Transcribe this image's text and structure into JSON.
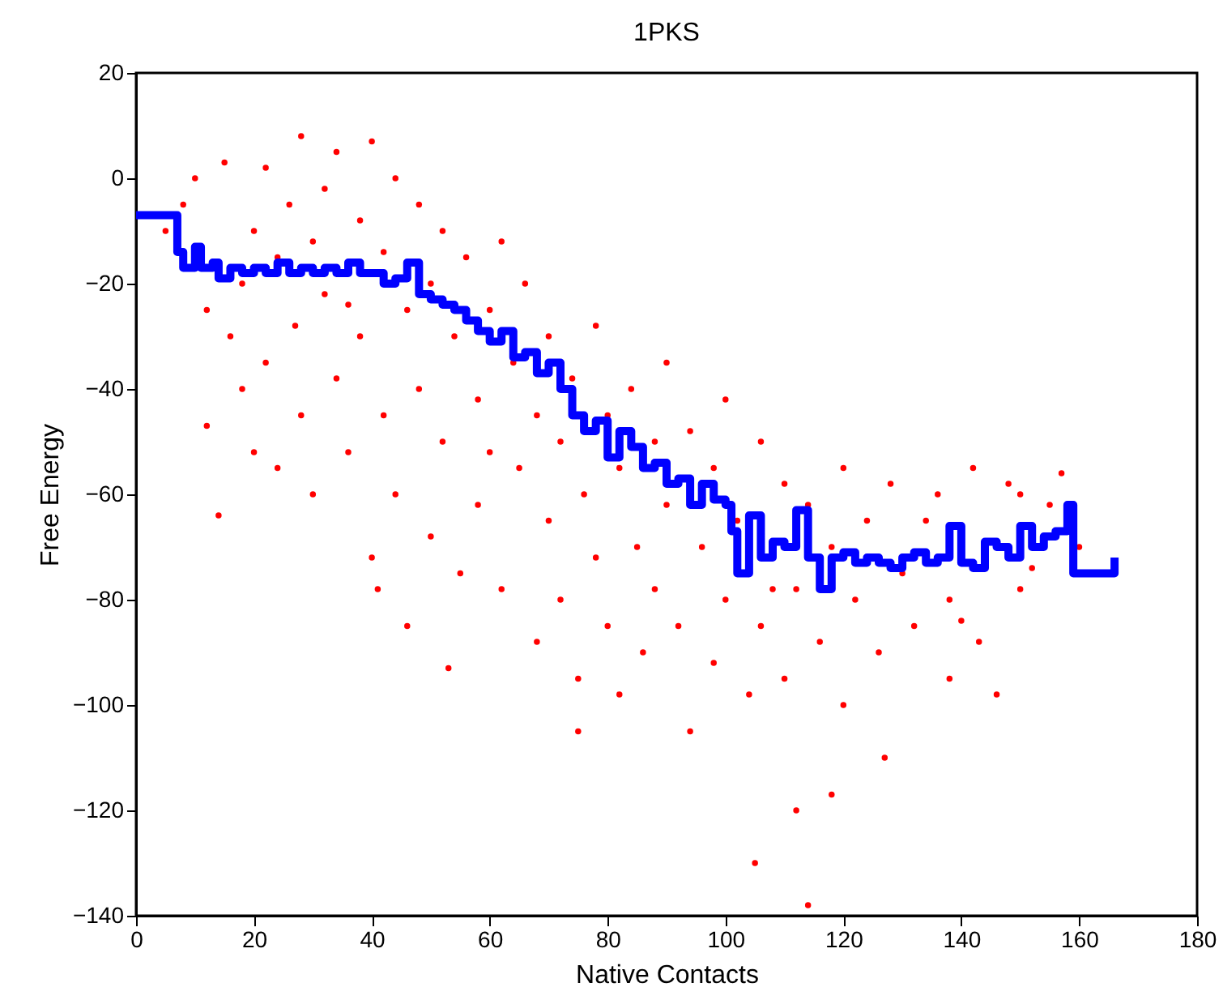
{
  "chart_data": {
    "type": "scatter",
    "title": "1PKS",
    "xlabel": "Native Contacts",
    "ylabel": "Free Energy",
    "xlim": [
      0,
      180
    ],
    "ylim": [
      -140,
      20
    ],
    "xticks": [
      0,
      20,
      40,
      60,
      80,
      100,
      120,
      140,
      160,
      180
    ],
    "yticks": [
      -140,
      -120,
      -100,
      -80,
      -60,
      -40,
      -20,
      0,
      20
    ],
    "grid": false,
    "series": [
      {
        "marker": "circle",
        "color": "#ff0000",
        "x": [
          5,
          8,
          10,
          12,
          12,
          14,
          15,
          16,
          18,
          18,
          20,
          20,
          22,
          22,
          24,
          24,
          26,
          27,
          28,
          28,
          30,
          30,
          32,
          32,
          34,
          34,
          36,
          36,
          38,
          38,
          40,
          40,
          41,
          42,
          42,
          44,
          44,
          46,
          46,
          48,
          48,
          50,
          50,
          52,
          52,
          53,
          54,
          55,
          56,
          58,
          58,
          60,
          60,
          62,
          62,
          64,
          65,
          66,
          68,
          68,
          70,
          70,
          72,
          72,
          74,
          75,
          75,
          76,
          78,
          78,
          80,
          80,
          82,
          82,
          84,
          85,
          86,
          88,
          88,
          90,
          90,
          92,
          94,
          94,
          96,
          98,
          98,
          100,
          100,
          102,
          104,
          105,
          106,
          106,
          108,
          110,
          110,
          112,
          112,
          114,
          114,
          116,
          118,
          118,
          120,
          120,
          122,
          124,
          126,
          127,
          128,
          130,
          132,
          134,
          136,
          138,
          138,
          140,
          142,
          143,
          146,
          148,
          150,
          150,
          152,
          155,
          157,
          160
        ],
        "values": [
          -10,
          -5,
          0,
          -25,
          -47,
          -64,
          3,
          -30,
          -20,
          -40,
          -10,
          -52,
          2,
          -35,
          -15,
          -55,
          -5,
          -28,
          8,
          -45,
          -12,
          -60,
          -2,
          -22,
          5,
          -38,
          -24,
          -52,
          -8,
          -30,
          7,
          -72,
          -78,
          -14,
          -45,
          0,
          -60,
          -25,
          -85,
          -5,
          -40,
          -20,
          -68,
          -10,
          -50,
          -93,
          -30,
          -75,
          -15,
          -42,
          -62,
          -25,
          -52,
          -12,
          -78,
          -35,
          -55,
          -20,
          -45,
          -88,
          -30,
          -65,
          -50,
          -80,
          -38,
          -105,
          -95,
          -60,
          -28,
          -72,
          -45,
          -85,
          -55,
          -98,
          -40,
          -70,
          -90,
          -50,
          -78,
          -35,
          -62,
          -85,
          -48,
          -105,
          -70,
          -55,
          -92,
          -42,
          -80,
          -65,
          -98,
          -130,
          -50,
          -85,
          -78,
          -58,
          -95,
          -78,
          -120,
          -138,
          -62,
          -88,
          -70,
          -117,
          -55,
          -100,
          -80,
          -65,
          -90,
          -110,
          -58,
          -75,
          -85,
          -65,
          -60,
          -80,
          -95,
          -84,
          -55,
          -88,
          -98,
          -58,
          -78,
          -60,
          -74,
          -62,
          -56,
          -70
        ]
      },
      {
        "type": "step",
        "color": "#0000ff",
        "x": [
          0,
          7,
          8,
          10,
          11,
          13,
          14,
          16,
          18,
          20,
          22,
          24,
          26,
          28,
          30,
          32,
          34,
          36,
          38,
          40,
          42,
          44,
          46,
          48,
          50,
          52,
          54,
          56,
          58,
          60,
          62,
          64,
          66,
          68,
          70,
          72,
          74,
          76,
          78,
          80,
          82,
          84,
          86,
          88,
          90,
          92,
          94,
          96,
          98,
          100,
          101,
          102,
          104,
          106,
          108,
          110,
          112,
          114,
          116,
          118,
          120,
          122,
          124,
          126,
          128,
          130,
          132,
          134,
          136,
          138,
          140,
          142,
          144,
          146,
          148,
          150,
          152,
          154,
          156,
          158,
          159,
          166
        ],
        "values": [
          -7,
          -14,
          -17,
          -13,
          -17,
          -16,
          -19,
          -17,
          -18,
          -17,
          -18,
          -16,
          -18,
          -17,
          -18,
          -17,
          -18,
          -16,
          -18,
          -18,
          -20,
          -19,
          -16,
          -22,
          -23,
          -24,
          -25,
          -27,
          -29,
          -31,
          -29,
          -34,
          -33,
          -37,
          -35,
          -40,
          -45,
          -48,
          -46,
          -53,
          -48,
          -51,
          -55,
          -54,
          -58,
          -57,
          -62,
          -58,
          -61,
          -62,
          -67,
          -75,
          -64,
          -72,
          -69,
          -70,
          -63,
          -72,
          -78,
          -72,
          -71,
          -73,
          -72,
          -73,
          -74,
          -72,
          -71,
          -73,
          -72,
          -66,
          -73,
          -74,
          -69,
          -70,
          -72,
          -66,
          -70,
          -68,
          -67,
          -62,
          -75,
          -72
        ]
      }
    ]
  }
}
